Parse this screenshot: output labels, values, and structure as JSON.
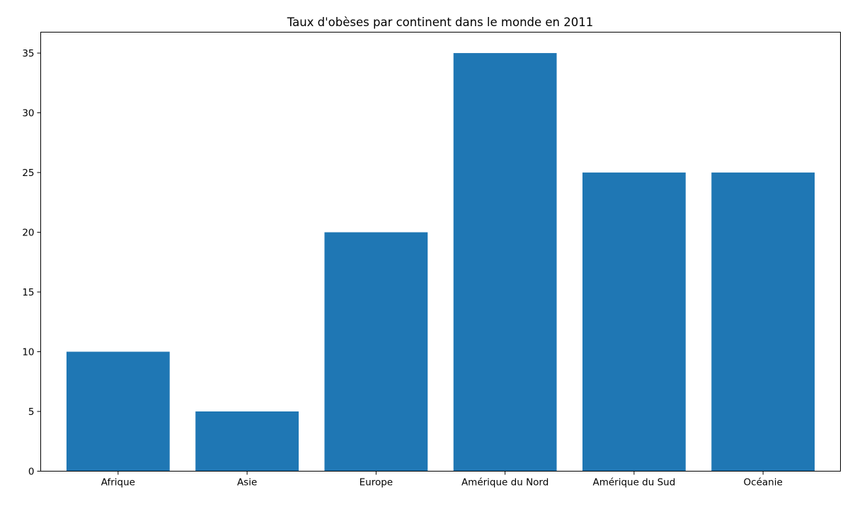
{
  "chart_data": {
    "type": "bar",
    "title": "Taux d'obèses par continent dans le monde en 2011",
    "xlabel": "",
    "ylabel": "",
    "categories": [
      "Afrique",
      "Asie",
      "Europe",
      "Amérique du Nord",
      "Amérique du Sud",
      "Océanie"
    ],
    "values": [
      10,
      5,
      20,
      35,
      25,
      25
    ],
    "ylim": [
      0,
      36.75
    ],
    "yticks": [
      "0",
      "5",
      "10",
      "15",
      "20",
      "25",
      "30",
      "35"
    ],
    "grid": false,
    "legend": "none",
    "bar_color": "#1f77b4"
  }
}
